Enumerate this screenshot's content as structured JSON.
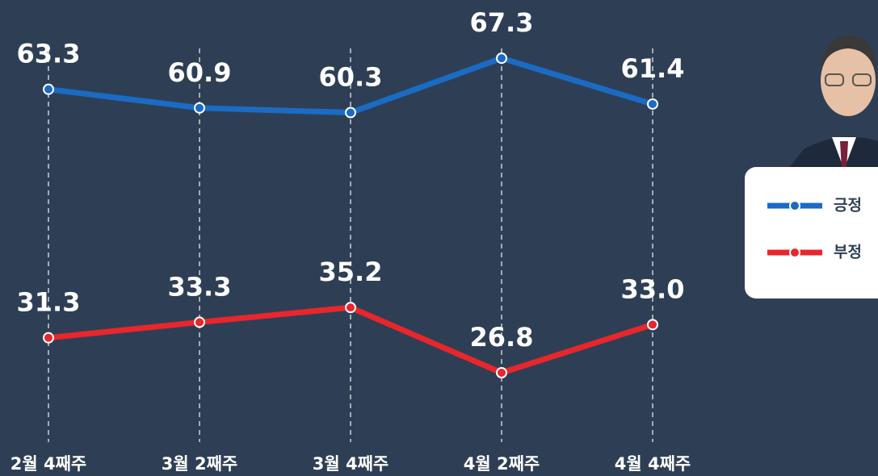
{
  "chart_data": {
    "type": "line",
    "categories": [
      "2월 4째주",
      "3월 2째주",
      "3월 4째주",
      "4월 2째주",
      "4월 4째주"
    ],
    "series": [
      {
        "name": "긍정",
        "color": "#1a6bc4",
        "values": [
          63.3,
          60.9,
          60.3,
          67.3,
          61.4
        ],
        "value_labels": [
          "63.3",
          "60.9",
          "60.3",
          "67.3",
          "61.4"
        ]
      },
      {
        "name": "부정",
        "color": "#e8262b",
        "values": [
          31.3,
          33.3,
          35.2,
          26.8,
          33.0
        ],
        "value_labels": [
          "31.3",
          "33.3",
          "35.2",
          "26.8",
          "33.0"
        ]
      }
    ],
    "ylim": [
      13.5,
      74.8
    ]
  }
}
